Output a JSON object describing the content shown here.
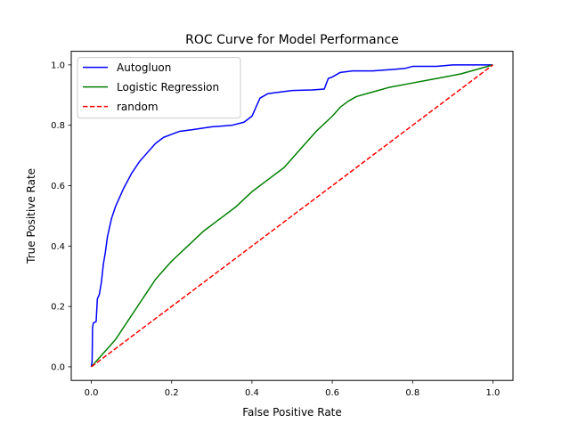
{
  "chart_data": {
    "type": "line",
    "title": "ROC Curve for Model Performance",
    "xlabel": "False Positive Rate",
    "ylabel": "True Positive Rate",
    "xlim": [
      -0.05,
      1.05
    ],
    "ylim": [
      -0.045,
      1.045
    ],
    "xticks": [
      0.0,
      0.2,
      0.4,
      0.6,
      0.8,
      1.0
    ],
    "yticks": [
      0.0,
      0.2,
      0.4,
      0.6,
      0.8,
      1.0
    ],
    "xtick_labels": [
      "0.0",
      "0.2",
      "0.4",
      "0.6",
      "0.8",
      "1.0"
    ],
    "ytick_labels": [
      "0.0",
      "0.2",
      "0.4",
      "0.6",
      "0.8",
      "1.0"
    ],
    "grid": false,
    "legend_position": "top-left",
    "series": [
      {
        "name": "Autogluon",
        "color": "#0000ff",
        "linestyle": "solid",
        "x": [
          0,
          0.002,
          0.003,
          0.005,
          0.012,
          0.015,
          0.02,
          0.025,
          0.03,
          0.035,
          0.04,
          0.045,
          0.05,
          0.055,
          0.06,
          0.07,
          0.08,
          0.1,
          0.12,
          0.14,
          0.16,
          0.18,
          0.2,
          0.22,
          0.25,
          0.3,
          0.35,
          0.38,
          0.4,
          0.41,
          0.42,
          0.44,
          0.47,
          0.5,
          0.55,
          0.58,
          0.59,
          0.6,
          0.62,
          0.65,
          0.7,
          0.75,
          0.78,
          0.8,
          0.86,
          0.9,
          0.95,
          1.0
        ],
        "y": [
          0,
          0.02,
          0.13,
          0.145,
          0.15,
          0.225,
          0.24,
          0.28,
          0.34,
          0.38,
          0.43,
          0.46,
          0.49,
          0.51,
          0.53,
          0.56,
          0.59,
          0.64,
          0.68,
          0.71,
          0.74,
          0.76,
          0.77,
          0.78,
          0.785,
          0.795,
          0.8,
          0.81,
          0.83,
          0.86,
          0.89,
          0.905,
          0.91,
          0.915,
          0.917,
          0.92,
          0.955,
          0.96,
          0.975,
          0.98,
          0.98,
          0.985,
          0.988,
          0.995,
          0.995,
          1.0,
          1.0,
          1.0
        ]
      },
      {
        "name": "Logistic Regression",
        "color": "#008000",
        "linestyle": "solid",
        "x": [
          0,
          0.02,
          0.04,
          0.06,
          0.08,
          0.1,
          0.12,
          0.14,
          0.16,
          0.18,
          0.2,
          0.24,
          0.28,
          0.32,
          0.36,
          0.4,
          0.44,
          0.48,
          0.52,
          0.56,
          0.6,
          0.62,
          0.64,
          0.66,
          0.7,
          0.74,
          0.8,
          0.86,
          0.92,
          1.0
        ],
        "y": [
          0,
          0.03,
          0.06,
          0.09,
          0.13,
          0.17,
          0.21,
          0.25,
          0.29,
          0.32,
          0.35,
          0.4,
          0.45,
          0.49,
          0.53,
          0.58,
          0.62,
          0.66,
          0.72,
          0.78,
          0.83,
          0.86,
          0.88,
          0.895,
          0.91,
          0.925,
          0.94,
          0.955,
          0.97,
          1.0
        ]
      },
      {
        "name": "random",
        "color": "#ff0000",
        "linestyle": "dashed",
        "x": [
          0,
          1
        ],
        "y": [
          0,
          1
        ]
      }
    ]
  }
}
